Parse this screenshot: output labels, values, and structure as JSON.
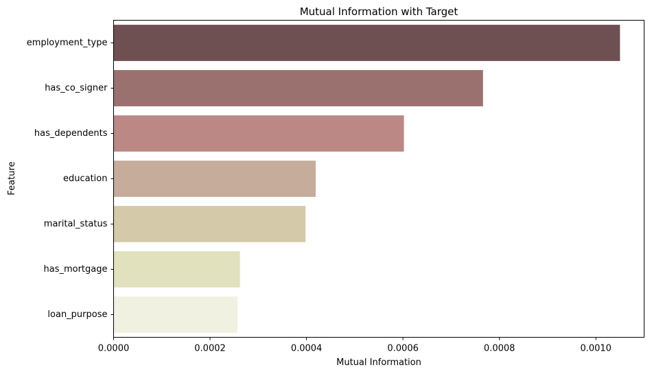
{
  "chart_data": {
    "type": "bar",
    "orientation": "horizontal",
    "title": "Mutual Information with Target",
    "xlabel": "Mutual Information",
    "ylabel": "Feature",
    "categories": [
      "employment_type",
      "has_co_signer",
      "has_dependents",
      "education",
      "marital_status",
      "has_mortgage",
      "loan_purpose"
    ],
    "values": [
      0.00105,
      0.000766,
      0.000602,
      0.000419,
      0.000398,
      0.000262,
      0.000257
    ],
    "colors": [
      "#6e5052",
      "#9b716f",
      "#bb8886",
      "#c6ac9a",
      "#d4c9a9",
      "#e1e2bd",
      "#f0f1e0"
    ],
    "xlim": [
      0,
      0.0011
    ],
    "xticks": [
      0,
      0.0002,
      0.0004,
      0.0006,
      0.0008,
      0.001
    ],
    "xtick_labels": [
      "0.0000",
      "0.0002",
      "0.0004",
      "0.0006",
      "0.0008",
      "0.0010"
    ],
    "grid": false,
    "legend": false
  }
}
